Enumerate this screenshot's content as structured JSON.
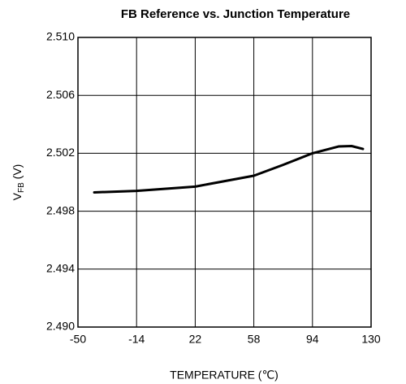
{
  "chart_data": {
    "type": "line",
    "title": "FB Reference vs. Junction Temperature",
    "x_label": "TEMPERATURE (℃)",
    "y_label": [
      "V",
      "FB",
      " (V)"
    ],
    "x": [
      -40,
      -14,
      22,
      58,
      76,
      94,
      110,
      118,
      125
    ],
    "series": [
      {
        "color": "#000000",
        "values": [
          2.4993,
          2.4994,
          2.4997,
          2.50045,
          2.5012,
          2.502,
          2.50247,
          2.5025,
          2.5023
        ]
      }
    ],
    "xlim": [
      -50,
      130
    ],
    "xticks": [
      -50,
      -14,
      22,
      58,
      94,
      130
    ],
    "ylim": [
      2.49,
      2.51
    ],
    "yticks": [
      {
        "value": 2.49,
        "label": "2.490"
      },
      {
        "value": 2.494,
        "label": "2.494"
      },
      {
        "value": 2.498,
        "label": "2.498"
      },
      {
        "value": 2.502,
        "label": "2.502"
      },
      {
        "value": 2.506,
        "label": "2.506"
      },
      {
        "value": 2.51,
        "label": "2.510"
      }
    ],
    "grid": true
  }
}
